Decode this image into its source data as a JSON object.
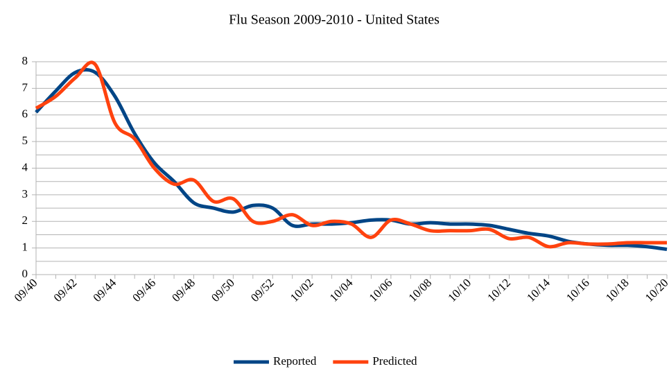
{
  "chart_data": {
    "type": "line",
    "title": "Flu Season 2009-2010 - United States",
    "categories": [
      "09/40",
      null,
      "09/42",
      null,
      "09/44",
      null,
      "09/46",
      null,
      "09/48",
      null,
      "09/50",
      null,
      "09/52",
      null,
      "10/02",
      null,
      "10/04",
      null,
      "10/06",
      null,
      "10/08",
      null,
      "10/10",
      null,
      "10/12",
      null,
      "10/14",
      null,
      "10/16",
      null,
      "10/18",
      null,
      "10/20"
    ],
    "series": [
      {
        "name": "Reported",
        "color": "#004586",
        "values": [
          6.1,
          6.9,
          7.6,
          7.6,
          6.7,
          5.3,
          4.2,
          3.5,
          2.7,
          2.5,
          2.35,
          2.6,
          2.5,
          1.85,
          1.9,
          1.9,
          1.95,
          2.05,
          2.05,
          1.9,
          1.95,
          1.9,
          1.9,
          1.85,
          1.7,
          1.55,
          1.45,
          1.25,
          1.15,
          1.1,
          1.1,
          1.05,
          0.95
        ]
      },
      {
        "name": "Predicted",
        "color": "#ff420e",
        "values": [
          6.25,
          6.7,
          7.4,
          7.9,
          5.7,
          5.1,
          4.0,
          3.4,
          3.55,
          2.75,
          2.85,
          2.0,
          2.0,
          2.25,
          1.85,
          2.0,
          1.9,
          1.4,
          2.05,
          1.9,
          1.65,
          1.65,
          1.65,
          1.7,
          1.35,
          1.4,
          1.05,
          1.2,
          1.15,
          1.15,
          1.2,
          1.2,
          1.2
        ]
      }
    ],
    "ylim": [
      0,
      8
    ],
    "yticks": [
      0,
      1,
      2,
      3,
      4,
      5,
      6,
      7,
      8
    ],
    "minor_yticks": [
      0.5,
      1.5,
      2.5,
      3.5,
      4.5,
      5.5,
      6.5,
      7.5
    ],
    "grid": true,
    "legend": "bottom"
  }
}
